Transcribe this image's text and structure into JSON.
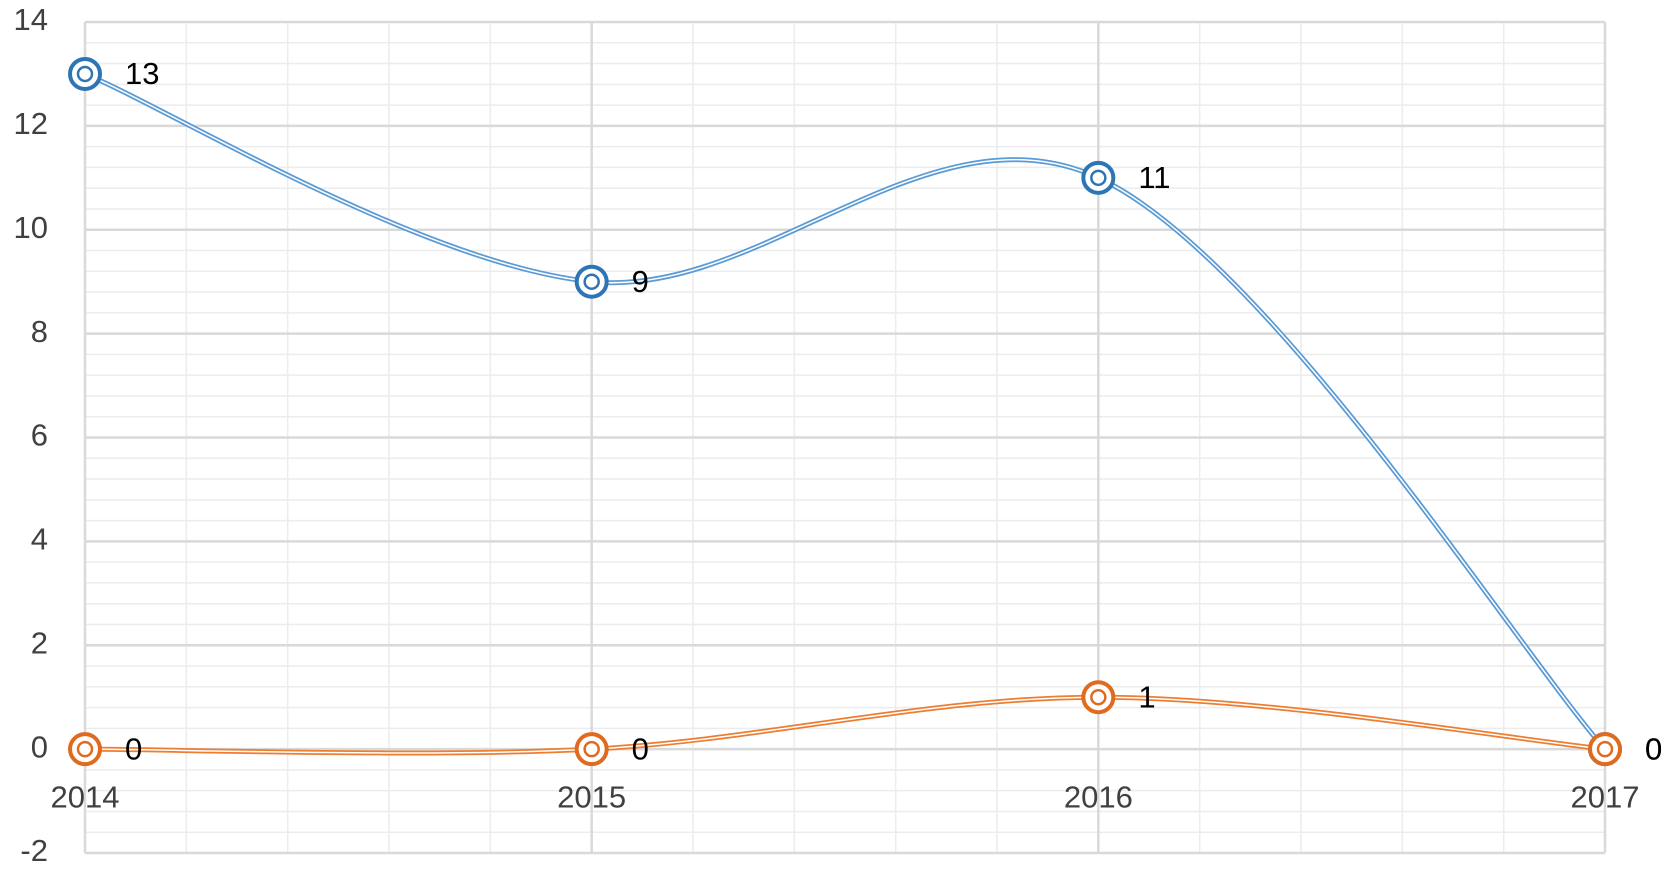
{
  "chart_data": {
    "type": "line",
    "smooth": true,
    "grid": true,
    "minor_grid": true,
    "categories": [
      "2014",
      "2015",
      "2016",
      "2017"
    ],
    "series": [
      {
        "color": "#5b9bd5",
        "marker_color": "#2e75b6",
        "values": [
          13,
          9,
          11,
          0
        ]
      },
      {
        "color": "#ed7d31",
        "marker_color": "#e06b1f",
        "values": [
          0,
          0,
          1,
          0
        ]
      }
    ],
    "ylim": [
      -2,
      14
    ],
    "yticks": [
      -2,
      0,
      2,
      4,
      6,
      8,
      10,
      12,
      14
    ]
  }
}
